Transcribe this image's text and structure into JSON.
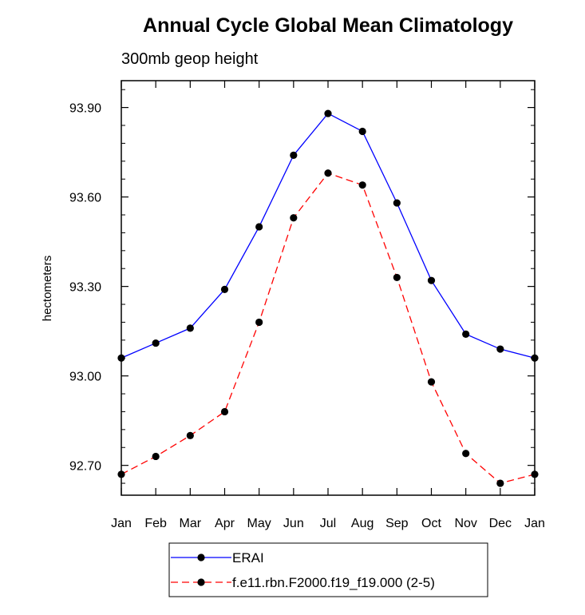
{
  "chart_data": {
    "type": "line",
    "title": "Annual Cycle Global Mean Climatology",
    "subtitle": "300mb geop height",
    "xlabel": "",
    "ylabel": "hectometers",
    "categories": [
      "Jan",
      "Feb",
      "Mar",
      "Apr",
      "May",
      "Jun",
      "Jul",
      "Aug",
      "Sep",
      "Oct",
      "Nov",
      "Dec",
      "Jan"
    ],
    "ylim": [
      92.6,
      93.99
    ],
    "yticks": [
      92.7,
      93.0,
      93.3,
      93.6,
      93.9
    ],
    "ytick_labels": [
      "92.70",
      "93.00",
      "93.30",
      "93.60",
      "93.90"
    ],
    "minor_ytick_step": 0.06,
    "grid": false,
    "legend_position": "bottom",
    "series": [
      {
        "name": "ERAI",
        "color": "#0000ff",
        "line_style": "solid",
        "marker": "circle",
        "values": [
          93.06,
          93.11,
          93.16,
          93.29,
          93.5,
          93.74,
          93.88,
          93.82,
          93.58,
          93.32,
          93.14,
          93.09,
          93.06
        ]
      },
      {
        "name": "f.e11.rbn.F2000.f19_f19.000 (2-5)",
        "color": "#ff0000",
        "line_style": "dashed",
        "marker": "circle",
        "values": [
          92.67,
          92.73,
          92.8,
          92.88,
          93.18,
          93.53,
          93.68,
          93.64,
          93.33,
          92.98,
          92.74,
          92.64,
          92.67
        ]
      }
    ]
  }
}
